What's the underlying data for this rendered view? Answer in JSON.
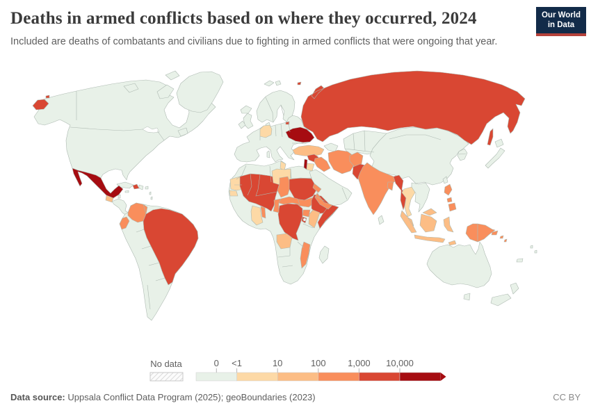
{
  "header": {
    "title": "Deaths in armed conflicts based on where they occurred, 2024",
    "subtitle": "Included are deaths of combatants and civilians due to fighting in armed conflicts that were ongoing that year.",
    "logo": {
      "line1": "Our World",
      "line2": "in Data",
      "background": "#122b49",
      "accent": "#b5423b"
    }
  },
  "legend": {
    "no_data_label": "No data",
    "tick_labels": [
      "0",
      "<1",
      "10",
      "100",
      "1,000",
      "10,000"
    ],
    "bin_colors": [
      "#e8f1e8",
      "#fdd9a6",
      "#fcbd85",
      "#f98e5c",
      "#d94733",
      "#a60c11"
    ]
  },
  "footer": {
    "source_label": "Data source:",
    "source_text": " Uppsala Conflict Data Program (2025); geoBoundaries (2023)",
    "license": "CC BY"
  },
  "map": {
    "palette": {
      "bin0": "#e8f1e8",
      "bin1": "#fdd9a6",
      "bin2": "#fcbd85",
      "bin3": "#f98e5c",
      "bin4": "#d94733",
      "bin5": "#a60c11"
    },
    "regions": {
      "north-america": "bin0",
      "newfoundland": "bin0",
      "greenland": "bin0",
      "canadian-arctic": "bin0",
      "iceland": "bin0",
      "uk": "bin0",
      "ireland": "bin0",
      "scandinavia": "bin0",
      "denmark": "bin0",
      "europe": "bin0",
      "europe-islands": "bin0",
      "svalbard": "bin0",
      "cuba": "bin0",
      "dominican-republic": "bin0",
      "jamaica": "bin0",
      "puerto-rico": "bin0",
      "lesser-antilles": "bin0",
      "belize": "bin0",
      "central-america": "bin0",
      "south-america": "bin0",
      "africa": "bin0",
      "madagascar": "bin0",
      "arabia": "bin0",
      "caucasus": "bin0",
      "central-asia": "bin0",
      "china": "bin0",
      "korea": "bin0",
      "japan": "bin0",
      "taiwan": "bin0",
      "indochina": "bin0",
      "nepal": "bin0",
      "sri-lanka": "bin0",
      "australia": "bin0",
      "tasmania": "bin0",
      "new-zealand": "bin0",
      "pacific-islands": "bin0",
      "germany": "bin1",
      "jordan": "bin1",
      "tunisia": "bin1",
      "libya": "bin1",
      "mauritania": "bin1",
      "senegal": "bin1",
      "ghana": "bin1",
      "thailand": "bin1",
      "turkey": "bin2",
      "guatemala": "bin2",
      "kenya": "bin2",
      "angola": "bin2",
      "indonesia": "bin2",
      "malaysia": "bin2",
      "colombia": "bin3",
      "ecuador": "bin3",
      "iraq": "bin3",
      "iran": "bin3",
      "afghanistan": "bin3",
      "yemen": "bin3",
      "india": "bin3",
      "bangladesh": "bin3",
      "philippines": "bin3",
      "west-papua": "bin3",
      "papua-new-guinea": "bin3",
      "chad": "bin3",
      "cameroon": "bin3",
      "central-african-republic": "bin3",
      "south-sudan": "bin3",
      "uganda": "bin3",
      "eritrea": "bin3",
      "mozambique": "bin3",
      "benin-togo": "bin3",
      "russia": "bin4",
      "kaliningrad": "bin4",
      "sakhalin": "bin4",
      "syria": "bin4",
      "pakistan": "bin4",
      "myanmar": "bin4",
      "west-africa": "bin4",
      "sudan": "bin4",
      "ethiopia": "bin4",
      "somalia": "bin4",
      "drc": "bin4",
      "rwanda-burundi": "bin4",
      "haiti": "bin4",
      "brazil": "bin4",
      "mexico": "bin5",
      "ukraine": "bin5",
      "levant": "bin5"
    }
  },
  "chart_data": {
    "type": "choropleth",
    "title": "Deaths in armed conflicts based on where they occurred, 2024",
    "subtitle": "Included are deaths of combatants and civilians due to fighting in armed conflicts that were ongoing that year.",
    "unit": "deaths",
    "legend": {
      "no_data": "No data",
      "bins": [
        {
          "range": "0",
          "color": "#e8f1e8"
        },
        {
          "range": "<1–10",
          "color": "#fdd9a6"
        },
        {
          "range": "10–100",
          "color": "#fcbd85"
        },
        {
          "range": "100–1,000",
          "color": "#f98e5c"
        },
        {
          "range": "1,000–10,000",
          "color": "#d94733"
        },
        {
          "range": ">10,000",
          "color": "#a60c11"
        }
      ]
    },
    "regions": {
      "United States": "0",
      "Canada": "0",
      "Greenland": "0",
      "Cuba": "0",
      "Dominican Republic": "0",
      "Honduras": "0",
      "Nicaragua": "0",
      "Costa Rica": "0",
      "Panama": "0",
      "Venezuela": "0",
      "Peru": "0",
      "Bolivia": "0",
      "Chile": "0",
      "Argentina": "0",
      "Paraguay": "0",
      "Uruguay": "0",
      "Guyana": "0",
      "Iceland": "0",
      "United Kingdom": "0",
      "Ireland": "0",
      "France": "0",
      "Spain": "0",
      "Portugal": "0",
      "Italy": "0",
      "Norway": "0",
      "Sweden": "0",
      "Finland": "0",
      "Poland": "0",
      "Belarus": "0",
      "Romania": "0",
      "Greece": "0",
      "Morocco": "0",
      "Algeria": "0",
      "Egypt": "0",
      "South Africa": "0",
      "Namibia": "0",
      "Botswana": "0",
      "Zambia": "0",
      "Tanzania": "0",
      "Madagascar": "0",
      "Saudi Arabia": "0",
      "Oman": "0",
      "Kazakhstan": "0",
      "Uzbekistan": "0",
      "Turkmenistan": "0",
      "China": "0",
      "Mongolia": "0",
      "Japan": "0",
      "South Korea": "0",
      "North Korea": "0",
      "Vietnam": "0",
      "Laos": "0",
      "Cambodia": "0",
      "Nepal": "0",
      "Sri Lanka": "0",
      "Taiwan": "0",
      "Australia": "0",
      "New Zealand": "0",
      "Germany": "<1–10",
      "Jordan": "<1–10",
      "Tunisia": "<1–10",
      "Libya": "<1–10",
      "Mauritania": "<1–10",
      "Senegal": "<1–10",
      "Ghana": "<1–10",
      "Thailand": "<1–10",
      "Turkey": "10–100",
      "Guatemala": "10–100",
      "Kenya": "10–100",
      "Angola": "10–100",
      "Indonesia": "10–100",
      "Malaysia": "10–100",
      "Colombia": "100–1,000",
      "Ecuador": "100–1,000",
      "Iraq": "100–1,000",
      "Iran": "100–1,000",
      "Afghanistan": "100–1,000",
      "Yemen": "100–1,000",
      "India": "100–1,000",
      "Bangladesh": "100–1,000",
      "Philippines": "100–1,000",
      "Papua New Guinea": "100–1,000",
      "Chad": "100–1,000",
      "Cameroon": "100–1,000",
      "Central African Republic": "100–1,000",
      "South Sudan": "100–1,000",
      "Uganda": "100–1,000",
      "Eritrea": "100–1,000",
      "Mozambique": "100–1,000",
      "Benin": "100–1,000",
      "Togo": "100–1,000",
      "Brazil": "1,000–10,000",
      "Haiti": "1,000–10,000",
      "Russia": "1,000–10,000",
      "Syria": "1,000–10,000",
      "Pakistan": "1,000–10,000",
      "Myanmar": "1,000–10,000",
      "Mali": "1,000–10,000",
      "Burkina Faso": "1,000–10,000",
      "Niger": "1,000–10,000",
      "Nigeria": "1,000–10,000",
      "Sudan": "1,000–10,000",
      "Ethiopia": "1,000–10,000",
      "Somalia": "1,000–10,000",
      "Democratic Republic of Congo": "1,000–10,000",
      "Burundi": "1,000–10,000",
      "Mexico": ">10,000",
      "Ukraine": ">10,000",
      "Lebanon": ">10,000",
      "Palestine": ">10,000"
    }
  }
}
